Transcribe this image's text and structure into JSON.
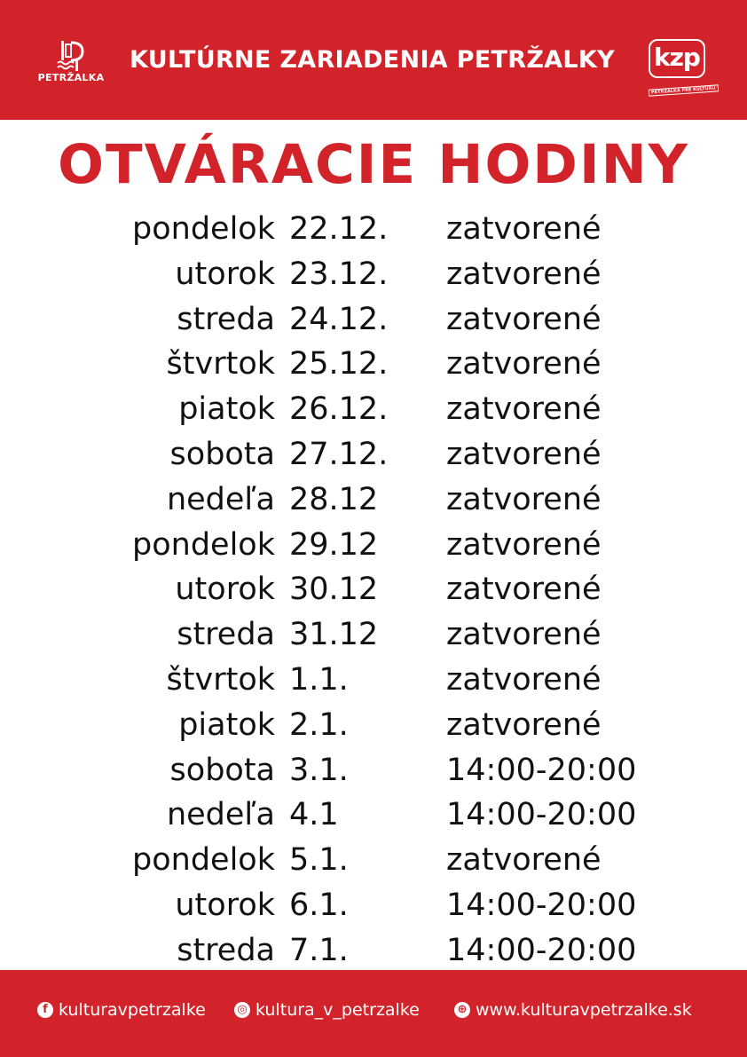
{
  "header": {
    "org_title": "KULTÚRNE ZARIADENIA PETRŽALKY",
    "logo_left_text": "PETRŽALKA",
    "logo_right_text": "kzp",
    "logo_right_sub": "PETRŽALKA PRE KULTÚRU",
    "brand_color": "#d2232a"
  },
  "title": "OTVÁRACIE HODINY",
  "schedule": [
    {
      "day": "pondelok",
      "date": "22.12.",
      "status": "zatvorené"
    },
    {
      "day": "utorok",
      "date": "23.12.",
      "status": "zatvorené"
    },
    {
      "day": "streda",
      "date": "24.12.",
      "status": "zatvorené"
    },
    {
      "day": "štvrtok",
      "date": "25.12.",
      "status": "zatvorené"
    },
    {
      "day": "piatok",
      "date": "26.12.",
      "status": "zatvorené"
    },
    {
      "day": "sobota",
      "date": "27.12.",
      "status": "zatvorené"
    },
    {
      "day": "nedeľa",
      "date": "28.12",
      "status": "zatvorené"
    },
    {
      "day": "pondelok",
      "date": "29.12",
      "status": "zatvorené"
    },
    {
      "day": "utorok",
      "date": "30.12",
      "status": "zatvorené"
    },
    {
      "day": "streda",
      "date": "31.12",
      "status": "zatvorené"
    },
    {
      "day": "štvrtok",
      "date": "1.1.",
      "status": "zatvorené"
    },
    {
      "day": "piatok",
      "date": "2.1.",
      "status": "zatvorené"
    },
    {
      "day": "sobota",
      "date": "3.1.",
      "status": "14:00-20:00"
    },
    {
      "day": "nedeľa",
      "date": "4.1",
      "status": "14:00-20:00"
    },
    {
      "day": "pondelok",
      "date": "5.1.",
      "status": "zatvorené"
    },
    {
      "day": "utorok",
      "date": "6.1.",
      "status": "14:00-20:00"
    },
    {
      "day": "streda",
      "date": "7.1.",
      "status": "14:00-20:00"
    }
  ],
  "footer": {
    "facebook": {
      "icon": "facebook-icon",
      "label": "kulturavpetrzalke"
    },
    "instagram": {
      "icon": "instagram-icon",
      "label": "kultura_v_petrzalke"
    },
    "web": {
      "icon": "globe-icon",
      "label": "www.kulturavpetrzalke.sk"
    }
  }
}
